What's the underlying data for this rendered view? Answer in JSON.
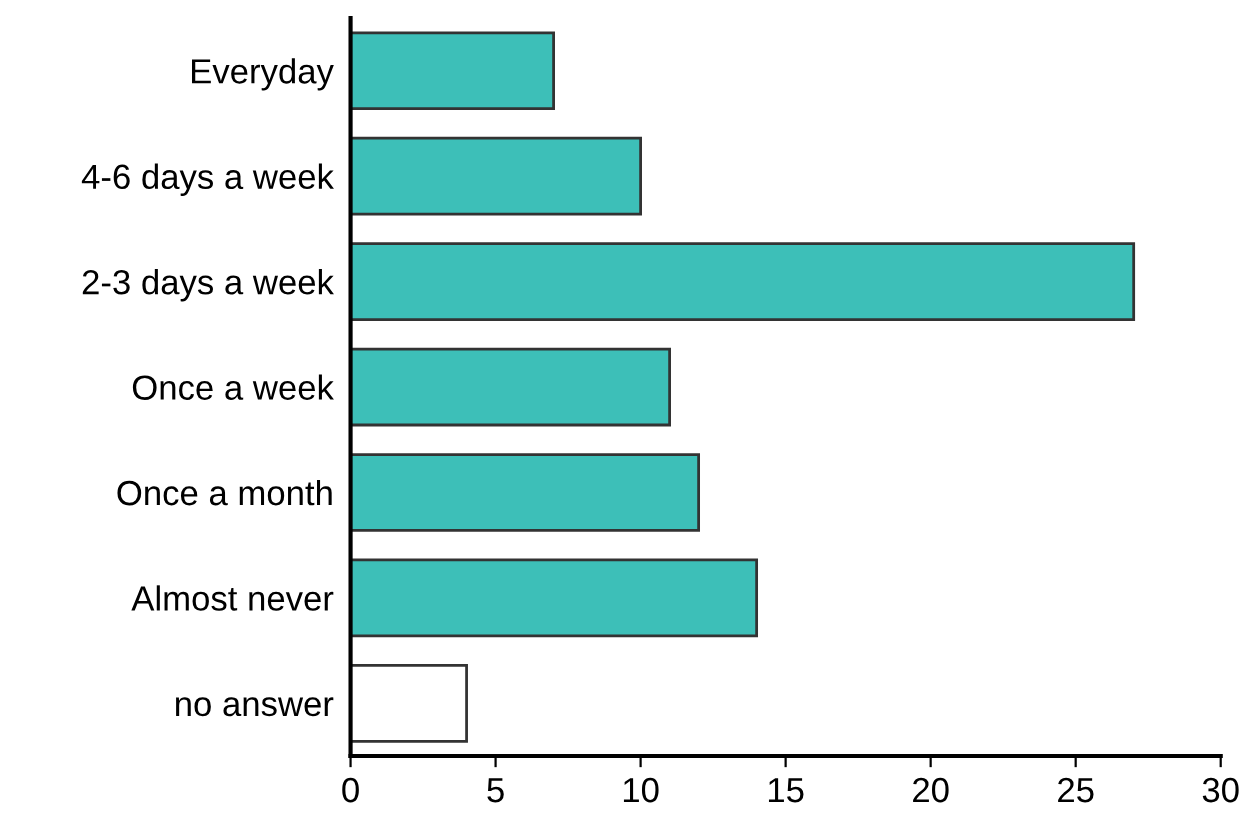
{
  "chart_data": {
    "type": "bar",
    "orientation": "horizontal",
    "categories": [
      "Everyday",
      "4-6 days a week",
      "2-3 days a week",
      "Once a week",
      "Once a month",
      "Almost never",
      "no answer"
    ],
    "values": [
      7,
      10,
      27,
      11,
      12,
      14,
      4
    ],
    "colors": [
      "#3dbfb8",
      "#3dbfb8",
      "#3dbfb8",
      "#3dbfb8",
      "#3dbfb8",
      "#3dbfb8",
      "#ffffff"
    ],
    "xlim": [
      0,
      30
    ],
    "xticks": [
      0,
      5,
      10,
      15,
      20,
      25,
      30
    ],
    "grid": false,
    "legend": false
  }
}
